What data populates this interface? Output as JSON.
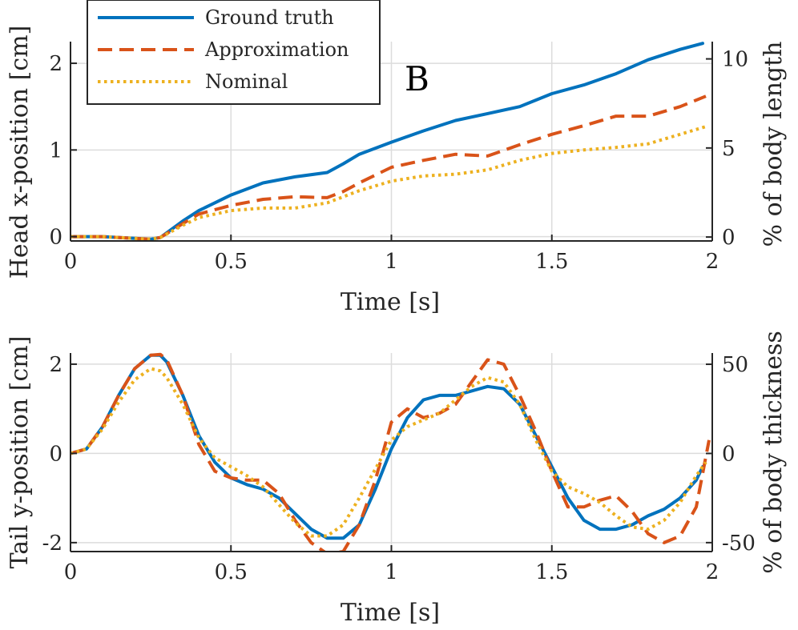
{
  "panel_letter": "B",
  "colors": {
    "ground_truth": "#0072BD",
    "approximation": "#D95319",
    "nominal": "#EDB120"
  },
  "chart_data": [
    {
      "type": "line",
      "xlabel": "Time [s]",
      "ylabel": "Head x-position [cm]",
      "ylabel_right": "% of body length",
      "xlim": [
        0,
        2
      ],
      "ylim": [
        -0.05,
        2.25
      ],
      "xticks": [
        0,
        0.5,
        1,
        1.5,
        2
      ],
      "xtick_labels": [
        "0",
        "0.5",
        "1",
        "1.5",
        "2"
      ],
      "yticks": [
        0,
        1,
        2
      ],
      "ytick_labels": [
        "0",
        "1",
        "2"
      ],
      "right_ylim": [
        -0.22,
        10.97
      ],
      "right_yticks": [
        0,
        5,
        10
      ],
      "right_ytick_labels": [
        "0",
        "5",
        "10"
      ],
      "grid": true,
      "legend": {
        "position": "top-left"
      },
      "series": [
        {
          "name": "Ground truth",
          "style": "solid",
          "color": "#0072BD",
          "x": [
            0,
            0.1,
            0.2,
            0.25,
            0.28,
            0.35,
            0.4,
            0.5,
            0.6,
            0.7,
            0.8,
            0.85,
            0.9,
            1.0,
            1.1,
            1.2,
            1.3,
            1.4,
            1.5,
            1.6,
            1.7,
            1.8,
            1.9,
            1.97
          ],
          "y": [
            0,
            0,
            -0.02,
            -0.03,
            -0.01,
            0.18,
            0.3,
            0.48,
            0.62,
            0.69,
            0.74,
            0.84,
            0.95,
            1.09,
            1.22,
            1.34,
            1.42,
            1.5,
            1.65,
            1.75,
            1.88,
            2.04,
            2.16,
            2.23
          ]
        },
        {
          "name": "Approximation",
          "style": "dashed",
          "color": "#D95319",
          "x": [
            0,
            0.1,
            0.2,
            0.25,
            0.28,
            0.35,
            0.4,
            0.5,
            0.6,
            0.7,
            0.8,
            0.85,
            0.9,
            1.0,
            1.1,
            1.2,
            1.3,
            1.4,
            1.5,
            1.6,
            1.7,
            1.8,
            1.9,
            1.98
          ],
          "y": [
            0,
            0,
            -0.02,
            -0.03,
            -0.01,
            0.15,
            0.26,
            0.36,
            0.43,
            0.46,
            0.45,
            0.52,
            0.62,
            0.8,
            0.88,
            0.95,
            0.93,
            1.06,
            1.18,
            1.28,
            1.39,
            1.39,
            1.5,
            1.62
          ]
        },
        {
          "name": "Nominal",
          "style": "dotted",
          "color": "#EDB120",
          "x": [
            0,
            0.1,
            0.2,
            0.25,
            0.28,
            0.35,
            0.4,
            0.5,
            0.6,
            0.7,
            0.8,
            0.9,
            1.0,
            1.1,
            1.2,
            1.3,
            1.4,
            1.5,
            1.6,
            1.7,
            1.8,
            1.9,
            1.98
          ],
          "y": [
            0,
            0,
            -0.02,
            -0.03,
            -0.01,
            0.13,
            0.22,
            0.3,
            0.33,
            0.33,
            0.39,
            0.53,
            0.64,
            0.7,
            0.72,
            0.77,
            0.88,
            0.96,
            1.0,
            1.03,
            1.07,
            1.18,
            1.27
          ]
        }
      ]
    },
    {
      "type": "line",
      "xlabel": "Time [s]",
      "ylabel": "Tail y-position [cm]",
      "ylabel_right": "% of body thickness",
      "xlim": [
        0,
        2
      ],
      "ylim": [
        -2.2,
        2.25
      ],
      "xticks": [
        0,
        0.5,
        1,
        1.5,
        2
      ],
      "xtick_labels": [
        "0",
        "0.5",
        "1",
        "1.5",
        "2"
      ],
      "yticks": [
        -2,
        0,
        2
      ],
      "ytick_labels": [
        "-2",
        "0",
        "2"
      ],
      "right_ylim": [
        -55,
        56.3
      ],
      "right_yticks": [
        -50,
        0,
        50
      ],
      "right_ytick_labels": [
        "-50",
        "0",
        "50"
      ],
      "grid": true,
      "series": [
        {
          "name": "Ground truth",
          "style": "solid",
          "color": "#0072BD",
          "x": [
            0,
            0.05,
            0.1,
            0.15,
            0.2,
            0.25,
            0.28,
            0.3,
            0.35,
            0.4,
            0.45,
            0.5,
            0.55,
            0.6,
            0.65,
            0.7,
            0.75,
            0.8,
            0.85,
            0.9,
            0.95,
            1.0,
            1.05,
            1.1,
            1.15,
            1.2,
            1.25,
            1.3,
            1.35,
            1.4,
            1.45,
            1.5,
            1.55,
            1.6,
            1.65,
            1.7,
            1.75,
            1.8,
            1.85,
            1.9,
            1.95,
            1.97
          ],
          "y": [
            0,
            0.1,
            0.6,
            1.3,
            1.9,
            2.2,
            2.2,
            2.05,
            1.3,
            0.4,
            -0.2,
            -0.55,
            -0.7,
            -0.8,
            -1.0,
            -1.35,
            -1.7,
            -1.9,
            -1.9,
            -1.6,
            -0.8,
            0.1,
            0.8,
            1.2,
            1.3,
            1.3,
            1.4,
            1.5,
            1.45,
            1.1,
            0.4,
            -0.3,
            -1.0,
            -1.5,
            -1.7,
            -1.7,
            -1.6,
            -1.4,
            -1.25,
            -1.0,
            -0.6,
            -0.3
          ]
        },
        {
          "name": "Approximation",
          "style": "dashed",
          "color": "#D95319",
          "x": [
            0,
            0.05,
            0.1,
            0.15,
            0.2,
            0.25,
            0.28,
            0.3,
            0.35,
            0.4,
            0.45,
            0.5,
            0.55,
            0.6,
            0.65,
            0.7,
            0.75,
            0.8,
            0.85,
            0.9,
            0.95,
            1.0,
            1.05,
            1.1,
            1.15,
            1.2,
            1.25,
            1.3,
            1.35,
            1.4,
            1.45,
            1.5,
            1.55,
            1.6,
            1.65,
            1.7,
            1.75,
            1.8,
            1.85,
            1.9,
            1.95,
            1.99
          ],
          "y": [
            0,
            0.1,
            0.6,
            1.3,
            1.9,
            2.2,
            2.22,
            2.1,
            1.3,
            0.2,
            -0.4,
            -0.55,
            -0.6,
            -0.6,
            -0.9,
            -1.5,
            -2.0,
            -2.25,
            -2.2,
            -1.6,
            -0.6,
            0.7,
            1.0,
            0.8,
            0.9,
            1.1,
            1.6,
            2.1,
            2.0,
            1.3,
            0.5,
            -0.4,
            -1.2,
            -1.2,
            -1.05,
            -0.95,
            -1.3,
            -1.8,
            -2.0,
            -1.85,
            -1.2,
            0.3
          ]
        },
        {
          "name": "Nominal",
          "style": "dotted",
          "color": "#EDB120",
          "x": [
            0,
            0.05,
            0.1,
            0.15,
            0.2,
            0.25,
            0.28,
            0.3,
            0.35,
            0.4,
            0.45,
            0.5,
            0.55,
            0.6,
            0.65,
            0.7,
            0.75,
            0.8,
            0.85,
            0.9,
            0.95,
            1.0,
            1.05,
            1.1,
            1.15,
            1.2,
            1.25,
            1.3,
            1.35,
            1.4,
            1.45,
            1.5,
            1.55,
            1.6,
            1.65,
            1.7,
            1.75,
            1.8,
            1.85,
            1.9,
            1.95,
            1.98
          ],
          "y": [
            0,
            0.1,
            0.55,
            1.15,
            1.65,
            1.9,
            1.85,
            1.7,
            1.1,
            0.35,
            -0.1,
            -0.3,
            -0.5,
            -0.75,
            -1.15,
            -1.55,
            -1.85,
            -1.85,
            -1.6,
            -1.0,
            -0.35,
            0.3,
            0.6,
            0.75,
            0.9,
            1.2,
            1.5,
            1.7,
            1.6,
            1.1,
            0.3,
            -0.4,
            -0.75,
            -0.9,
            -1.1,
            -1.4,
            -1.65,
            -1.7,
            -1.5,
            -1.1,
            -0.5,
            -0.2
          ]
        }
      ]
    }
  ]
}
